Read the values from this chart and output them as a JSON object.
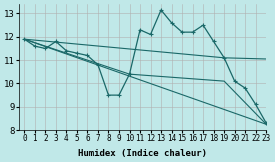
{
  "xlabel": "Humidex (Indice chaleur)",
  "bg_color": "#c0e8e8",
  "grid_color": "#b0b0b0",
  "line_color": "#1a6868",
  "xlim": [
    -0.5,
    23
  ],
  "ylim": [
    8,
    13.4
  ],
  "yticks": [
    8,
    9,
    10,
    11,
    12,
    13
  ],
  "xticks": [
    0,
    1,
    2,
    3,
    4,
    5,
    6,
    7,
    8,
    9,
    10,
    11,
    12,
    13,
    14,
    15,
    16,
    17,
    18,
    19,
    20,
    21,
    22,
    23
  ],
  "lines": [
    {
      "x": [
        0,
        1,
        2,
        3,
        4,
        5,
        6,
        7,
        8,
        9,
        10,
        11,
        12,
        13,
        14,
        15,
        16,
        17,
        18,
        19,
        20,
        21,
        22,
        23
      ],
      "y": [
        11.9,
        11.6,
        11.5,
        11.8,
        11.4,
        11.3,
        11.2,
        10.8,
        9.5,
        9.5,
        10.4,
        12.3,
        12.1,
        13.15,
        12.6,
        12.2,
        12.2,
        12.5,
        11.8,
        11.1,
        10.1,
        9.8,
        9.1,
        8.3
      ],
      "marker": true,
      "lw": 0.9
    },
    {
      "x": [
        0,
        19,
        23
      ],
      "y": [
        11.9,
        11.1,
        11.05
      ],
      "marker": false,
      "lw": 0.8
    },
    {
      "x": [
        0,
        10,
        19,
        23
      ],
      "y": [
        11.9,
        10.4,
        10.1,
        8.25
      ],
      "marker": false,
      "lw": 0.8
    },
    {
      "x": [
        0,
        23
      ],
      "y": [
        11.9,
        8.25
      ],
      "marker": false,
      "lw": 0.8
    }
  ]
}
